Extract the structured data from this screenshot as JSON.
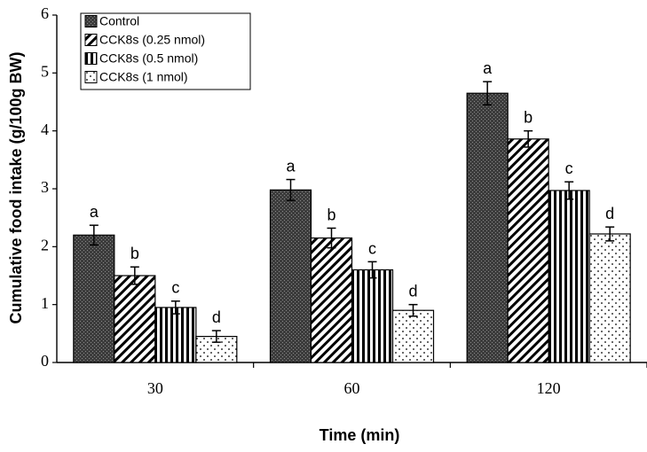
{
  "chart_data": {
    "type": "bar",
    "xlabel": "Time (min)",
    "ylabel": "Cumulative food intake (g/100g BW)",
    "ylim": [
      0,
      6
    ],
    "yticks": [
      "0",
      "1",
      "2",
      "3",
      "4",
      "5",
      "6"
    ],
    "categories": [
      "30",
      "60",
      "120"
    ],
    "legend_position": "top-left",
    "grid": false,
    "series": [
      {
        "name": "Control",
        "values": [
          2.2,
          2.98,
          4.65
        ],
        "errors": [
          0.17,
          0.18,
          0.2
        ],
        "sig_labels": [
          "a",
          "a",
          "a"
        ],
        "pattern": "dark-crosshatch"
      },
      {
        "name": "CCK8s (0.25 nmol)",
        "values": [
          1.5,
          2.15,
          3.86
        ],
        "errors": [
          0.15,
          0.17,
          0.14
        ],
        "sig_labels": [
          "b",
          "b",
          "b"
        ],
        "pattern": "diagonal-stripes"
      },
      {
        "name": "CCK8s (0.5 nmol)",
        "values": [
          0.95,
          1.6,
          2.97
        ],
        "errors": [
          0.11,
          0.14,
          0.15
        ],
        "sig_labels": [
          "c",
          "c",
          "c"
        ],
        "pattern": "vertical-stripes"
      },
      {
        "name": "CCK8s (1 nmol)",
        "values": [
          0.45,
          0.9,
          2.22
        ],
        "errors": [
          0.1,
          0.1,
          0.12
        ],
        "sig_labels": [
          "d",
          "d",
          "d"
        ],
        "pattern": "dots"
      }
    ]
  }
}
